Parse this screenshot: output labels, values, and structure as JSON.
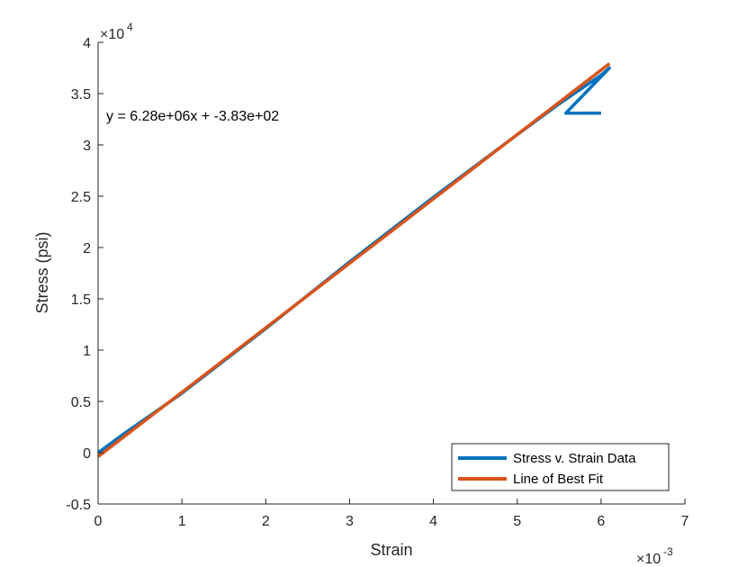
{
  "chart_data": {
    "type": "line",
    "xlabel": "Strain",
    "ylabel": "Stress (psi)",
    "x_multiplier": "×10",
    "x_exponent": "-3",
    "y_multiplier": "×10",
    "y_exponent": "4",
    "xlim": [
      0,
      0.007
    ],
    "ylim": [
      -5000,
      40000
    ],
    "x_ticks": [
      0,
      0.001,
      0.002,
      0.003,
      0.004,
      0.005,
      0.006,
      0.007
    ],
    "x_tick_labels": [
      "0",
      "1",
      "2",
      "3",
      "4",
      "5",
      "6",
      "7"
    ],
    "y_ticks": [
      -5000,
      0,
      5000,
      10000,
      15000,
      20000,
      25000,
      30000,
      35000,
      40000
    ],
    "y_tick_labels": [
      "-0.5",
      "0",
      "0.5",
      "1",
      "1.5",
      "2",
      "2.5",
      "3",
      "3.5",
      "4"
    ],
    "grid": false,
    "legend_position": "bottom-right",
    "annotation": "y = 6.28e+06x + -3.83e+02",
    "series": [
      {
        "name": "Stress v. Strain Data",
        "color": "#0072BD",
        "x": [
          0,
          0.0003,
          0.0006,
          0.001,
          0.002,
          0.003,
          0.004,
          0.005,
          0.0055,
          0.006,
          0.0061,
          0.00558,
          0.006
        ],
        "y": [
          0,
          1800,
          3500,
          5800,
          12100,
          18600,
          24900,
          31000,
          34000,
          36800,
          37500,
          33100,
          33100
        ]
      },
      {
        "name": "Line of Best Fit",
        "color": "#D95319",
        "x": [
          0,
          0.0061
        ],
        "y": [
          -383,
          37925
        ]
      }
    ]
  }
}
